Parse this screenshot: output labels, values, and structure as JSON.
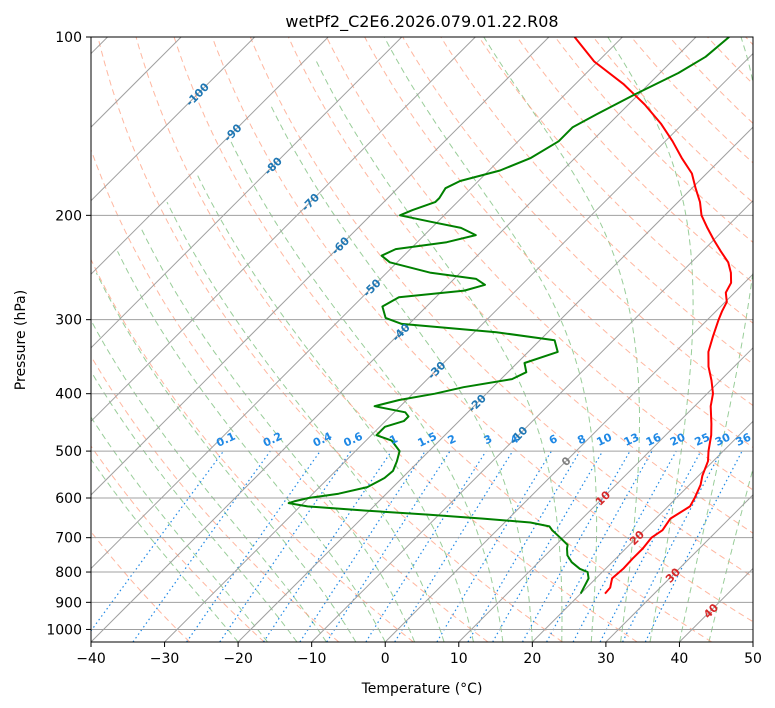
{
  "chart_data": {
    "type": "skew-t",
    "title": "wetPf2_C2E6.2026.079.01.22.R08",
    "xlabel": "Temperature (°C)",
    "ylabel": "Pressure (hPa)",
    "xlim": [
      -40,
      50
    ],
    "ylim": [
      1050,
      100
    ],
    "y_scale": "log",
    "grid": true,
    "x_ticks": [
      -40,
      -30,
      -20,
      -10,
      0,
      10,
      20,
      30,
      40,
      50
    ],
    "y_ticks": [
      100,
      200,
      300,
      400,
      500,
      600,
      700,
      800,
      900,
      1000
    ],
    "colors": {
      "temperature": "#ff0000",
      "dewpoint": "#008000",
      "isotherm_grid": "#a0a0a0",
      "dry_adiabat": "#ff9f80",
      "moist_adiabat": "#80c080",
      "mixing_ratio": "#1e88e5",
      "isotherm_label_cold": "#1f77b4",
      "isotherm_label_warm": "#d62728",
      "isotherm_label_zero": "#808080"
    },
    "isotherm_labels": [
      "-100",
      "-90",
      "-80",
      "-70",
      "-60",
      "-50",
      "-40",
      "-30",
      "-20",
      "-10",
      "0",
      "10",
      "20",
      "30",
      "40"
    ],
    "isotherm_values": [
      -100,
      -90,
      -80,
      -70,
      -60,
      -50,
      -40,
      -30,
      -20,
      -10,
      0,
      10,
      20,
      30,
      40
    ],
    "mixing_ratio_labels": [
      "0.1",
      "0.2",
      "0.4",
      "0.6",
      "1",
      "1.5",
      "2",
      "3",
      "4",
      "6",
      "8",
      "10",
      "13",
      "16",
      "20",
      "25",
      "30",
      "36"
    ],
    "mixing_ratio_values": [
      0.1,
      0.2,
      0.4,
      0.6,
      1,
      1.5,
      2,
      3,
      4,
      6,
      8,
      10,
      13,
      16,
      20,
      25,
      30,
      36
    ],
    "series": [
      {
        "key": "temperature",
        "points": [
          [
            870,
            23.3
          ],
          [
            850,
            23.2
          ],
          [
            820,
            22.2
          ],
          [
            790,
            22.4
          ],
          [
            760,
            22.3
          ],
          [
            730,
            22.3
          ],
          [
            700,
            22.0
          ],
          [
            680,
            22.5
          ],
          [
            650,
            22.0
          ],
          [
            620,
            23.0
          ],
          [
            600,
            22.5
          ],
          [
            570,
            21.5
          ],
          [
            550,
            20.5
          ],
          [
            520,
            19.3
          ],
          [
            500,
            18.0
          ],
          [
            470,
            16.2
          ],
          [
            450,
            14.7
          ],
          [
            420,
            12.2
          ],
          [
            400,
            10.8
          ],
          [
            380,
            8.8
          ],
          [
            360,
            6.5
          ],
          [
            340,
            4.5
          ],
          [
            320,
            3.0
          ],
          [
            300,
            1.5
          ],
          [
            290,
            0.8
          ],
          [
            280,
            0.2
          ],
          [
            270,
            -1.2
          ],
          [
            260,
            -1.8
          ],
          [
            250,
            -3.2
          ],
          [
            240,
            -5.0
          ],
          [
            230,
            -7.5
          ],
          [
            220,
            -10.0
          ],
          [
            210,
            -12.5
          ],
          [
            200,
            -15.0
          ],
          [
            190,
            -17.0
          ],
          [
            180,
            -19.5
          ],
          [
            170,
            -22.0
          ],
          [
            160,
            -25.5
          ],
          [
            150,
            -29.0
          ],
          [
            140,
            -33.0
          ],
          [
            130,
            -37.8
          ],
          [
            120,
            -43.5
          ],
          [
            110,
            -50.5
          ],
          [
            100,
            -56.5
          ]
        ]
      },
      {
        "key": "dewpoint",
        "points": [
          [
            870,
            20.0
          ],
          [
            850,
            19.6
          ],
          [
            820,
            19.0
          ],
          [
            800,
            18.0
          ],
          [
            790,
            16.5
          ],
          [
            770,
            14.5
          ],
          [
            750,
            13.0
          ],
          [
            730,
            12.0
          ],
          [
            720,
            11.6
          ],
          [
            700,
            9.6
          ],
          [
            680,
            7.5
          ],
          [
            670,
            6.6
          ],
          [
            660,
            3.5
          ],
          [
            650,
            -3.5
          ],
          [
            640,
            -11.5
          ],
          [
            630,
            -20.5
          ],
          [
            620,
            -29.0
          ],
          [
            612,
            -32.0
          ],
          [
            608,
            -31.5
          ],
          [
            600,
            -30.0
          ],
          [
            590,
            -26.5
          ],
          [
            575,
            -23.5
          ],
          [
            555,
            -22.4
          ],
          [
            540,
            -22.2
          ],
          [
            520,
            -23.0
          ],
          [
            500,
            -24.0
          ],
          [
            480,
            -26.5
          ],
          [
            470,
            -29.3
          ],
          [
            455,
            -29.3
          ],
          [
            445,
            -27.5
          ],
          [
            437,
            -27.5
          ],
          [
            430,
            -28.5
          ],
          [
            420,
            -33.5
          ],
          [
            410,
            -31.0
          ],
          [
            400,
            -27.0
          ],
          [
            390,
            -24.0
          ],
          [
            378,
            -18.5
          ],
          [
            368,
            -17.5
          ],
          [
            355,
            -19.0
          ],
          [
            340,
            -16.0
          ],
          [
            325,
            -18.0
          ],
          [
            315,
            -27.0
          ],
          [
            305,
            -41.0
          ],
          [
            298,
            -44.0
          ],
          [
            285,
            -46.0
          ],
          [
            275,
            -45.0
          ],
          [
            268,
            -37.0
          ],
          [
            262,
            -35.0
          ],
          [
            256,
            -37.0
          ],
          [
            250,
            -44.0
          ],
          [
            240,
            -51.0
          ],
          [
            234,
            -53.0
          ],
          [
            228,
            -52.0
          ],
          [
            222,
            -46.0
          ],
          [
            216,
            -43.0
          ],
          [
            210,
            -46.0
          ],
          [
            205,
            -51.0
          ],
          [
            200,
            -56.0
          ],
          [
            196,
            -55.0
          ],
          [
            190,
            -53.0
          ],
          [
            187,
            -53.0
          ],
          [
            180,
            -53.5
          ],
          [
            175,
            -52.5
          ],
          [
            168,
            -48.5
          ],
          [
            160,
            -46.0
          ],
          [
            150,
            -44.5
          ],
          [
            142,
            -44.5
          ],
          [
            135,
            -43.0
          ],
          [
            125,
            -40.5
          ],
          [
            115,
            -37.5
          ],
          [
            108,
            -36.0
          ],
          [
            100,
            -35.5
          ]
        ]
      }
    ]
  }
}
